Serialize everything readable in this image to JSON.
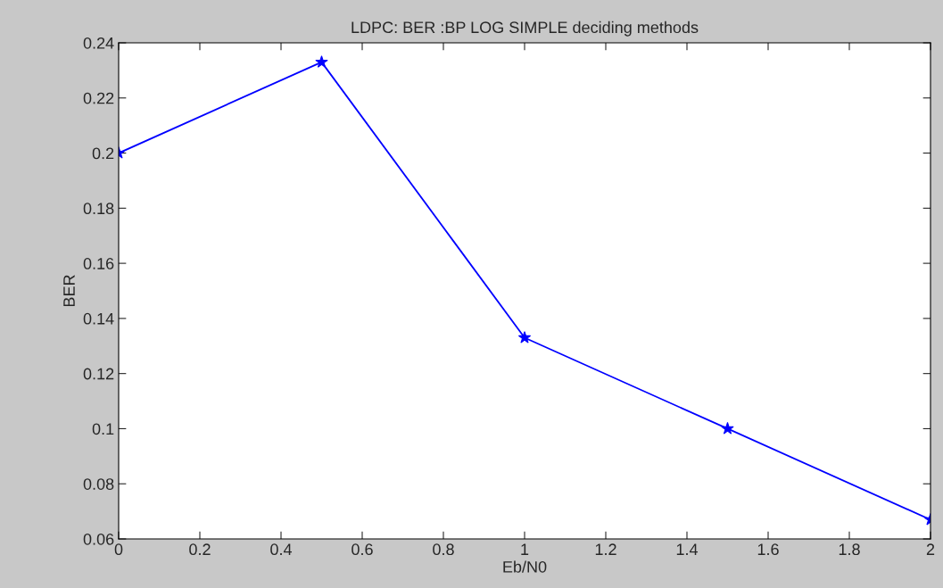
{
  "chart_data": {
    "type": "line",
    "title": "LDPC: BER :BP LOG SIMPLE deciding methods",
    "xlabel": "Eb/N0",
    "ylabel": "BER",
    "x": [
      0,
      0.5,
      1,
      1.5,
      2
    ],
    "series": [
      {
        "color": "#0000ff",
        "values": [
          0.2,
          0.233,
          0.133,
          0.1,
          0.067
        ]
      }
    ],
    "xlim": [
      0,
      2
    ],
    "ylim": [
      0.06,
      0.24
    ],
    "xticks": [
      0,
      0.2,
      0.4,
      0.6,
      0.8,
      1,
      1.2,
      1.4,
      1.6,
      1.8,
      2
    ],
    "yticks": [
      0.06,
      0.08,
      0.1,
      0.12,
      0.14,
      0.16,
      0.18,
      0.2,
      0.22,
      0.24
    ],
    "marker": "star",
    "line_style": "solid",
    "grid": false
  }
}
